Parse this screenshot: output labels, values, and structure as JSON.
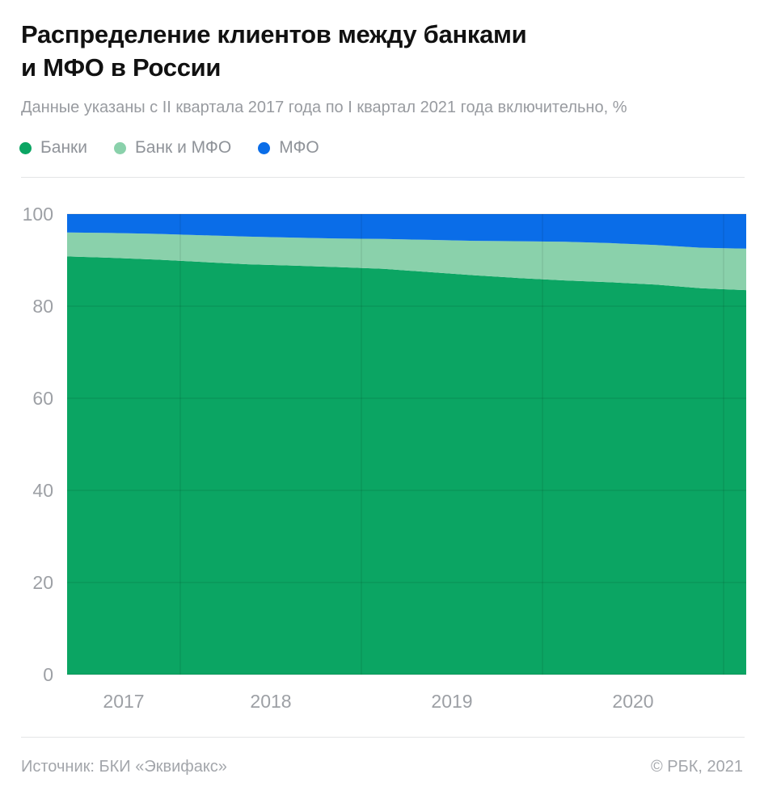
{
  "page": {
    "title_line1": "Распределение клиентов между банками",
    "title_line2": "и МФО в России",
    "subtitle": "Данные указаны с II квартала 2017 года по I квартал 2021 года включительно, %",
    "source": "Источник: БКИ «Эквифакс»",
    "copyright": "© РБК, 2021"
  },
  "colors": {
    "banks": "#0ba563",
    "bank_and_mfo": "#8ad1ab",
    "mfo": "#0a6de8",
    "title_text": "#111111",
    "muted_text": "#989ba0",
    "axis_text": "#9da0a5",
    "footer_text": "#a3a6ab",
    "grid": "rgba(0,0,0,0.13)",
    "divider": "#e4e5e6"
  },
  "legend": [
    {
      "label": "Банки",
      "color_key": "banks"
    },
    {
      "label": "Банк и МФО",
      "color_key": "bank_and_mfo"
    },
    {
      "label": "МФО",
      "color_key": "mfo"
    }
  ],
  "chart_data": {
    "type": "area",
    "stacked": true,
    "unit": "%",
    "x": [
      "2017 Q2",
      "2017 Q3",
      "2017 Q4",
      "2018 Q1",
      "2018 Q2",
      "2018 Q3",
      "2018 Q4",
      "2019 Q1",
      "2019 Q2",
      "2019 Q3",
      "2019 Q4",
      "2020 Q1",
      "2020 Q2",
      "2020 Q3",
      "2020 Q4",
      "2021 Q1"
    ],
    "series": [
      {
        "name": "Банки",
        "color_key": "banks",
        "values": [
          90.8,
          90.5,
          90.1,
          89.6,
          89.1,
          88.8,
          88.5,
          88.1,
          87.4,
          86.7,
          86.1,
          85.6,
          85.2,
          84.7,
          83.9,
          83.5
        ]
      },
      {
        "name": "Банк и МФО",
        "color_key": "bank_and_mfo",
        "values": [
          5.2,
          5.4,
          5.6,
          5.8,
          6.0,
          6.1,
          6.2,
          6.5,
          7.0,
          7.5,
          8.0,
          8.4,
          8.5,
          8.6,
          8.8,
          9.0
        ]
      },
      {
        "name": "МФО",
        "color_key": "mfo",
        "values": [
          4.0,
          4.1,
          4.3,
          4.6,
          4.9,
          5.1,
          5.3,
          5.4,
          5.6,
          5.8,
          5.9,
          6.0,
          6.3,
          6.7,
          7.3,
          7.5
        ]
      }
    ],
    "ylim": [
      0,
      100
    ],
    "yticks": [
      0,
      20,
      40,
      60,
      80,
      100
    ],
    "x_year_labels": [
      "2017",
      "2018",
      "2019",
      "2020"
    ],
    "grid": "on",
    "legend_position": "top"
  }
}
